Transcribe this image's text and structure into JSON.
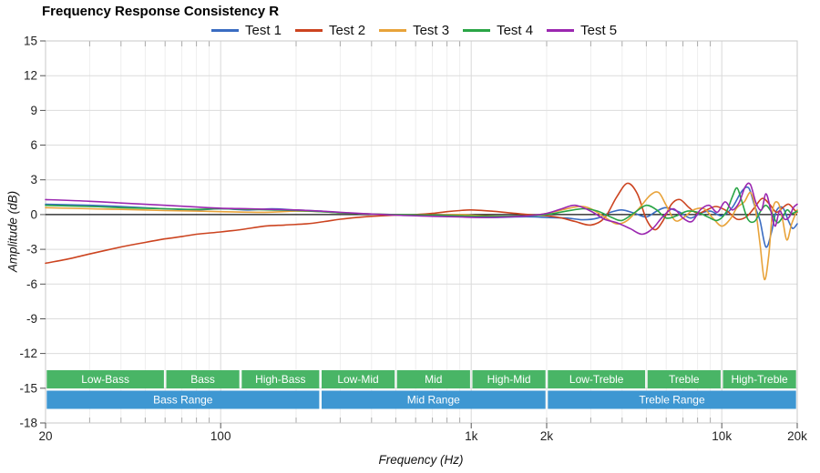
{
  "chart_data": {
    "type": "line",
    "title": "Frequency Response Consistency R",
    "xlabel": "Frequency (Hz)",
    "ylabel": "Amplitude (dB)",
    "x_scale": "log",
    "xlim": [
      20,
      20000
    ],
    "ylim": [
      -18,
      15
    ],
    "grid": true,
    "legend_position": "top",
    "y_ticks": [
      15,
      12,
      9,
      6,
      3,
      0,
      -3,
      -6,
      -9,
      -12,
      -15,
      -18
    ],
    "x_ticks": [
      {
        "v": 20,
        "label": "20"
      },
      {
        "v": 100,
        "label": "100"
      },
      {
        "v": 1000,
        "label": "1k"
      },
      {
        "v": 2000,
        "label": "2k"
      },
      {
        "v": 10000,
        "label": "10k"
      },
      {
        "v": 20000,
        "label": "20k"
      }
    ],
    "zero_line_color": "#111111",
    "series": [
      {
        "name": "Test 1",
        "color": "#3a6cc2",
        "points": [
          [
            20,
            0.9
          ],
          [
            30,
            0.8
          ],
          [
            40,
            0.7
          ],
          [
            60,
            0.5
          ],
          [
            80,
            0.4
          ],
          [
            100,
            0.5
          ],
          [
            130,
            0.4
          ],
          [
            160,
            0.5
          ],
          [
            200,
            0.4
          ],
          [
            250,
            0.3
          ],
          [
            300,
            0.15
          ],
          [
            400,
            0.05
          ],
          [
            500,
            0
          ],
          [
            600,
            -0.05
          ],
          [
            700,
            -0.1
          ],
          [
            800,
            -0.15
          ],
          [
            1000,
            -0.2
          ],
          [
            1200,
            -0.25
          ],
          [
            1500,
            -0.2
          ],
          [
            1800,
            -0.2
          ],
          [
            2000,
            -0.25
          ],
          [
            2400,
            -0.3
          ],
          [
            2800,
            -0.45
          ],
          [
            3200,
            -0.3
          ],
          [
            3600,
            0.2
          ],
          [
            4000,
            0.4
          ],
          [
            4500,
            0.1
          ],
          [
            5000,
            -0.2
          ],
          [
            5500,
            0.3
          ],
          [
            6000,
            0.6
          ],
          [
            6800,
            0.2
          ],
          [
            7500,
            -0.3
          ],
          [
            8200,
            0.1
          ],
          [
            9000,
            0.3
          ],
          [
            10000,
            -0.1
          ],
          [
            11000,
            0.6
          ],
          [
            12000,
            2.0
          ],
          [
            12800,
            2.3
          ],
          [
            13500,
            0.8
          ],
          [
            14200,
            -0.5
          ],
          [
            15000,
            -2.8
          ],
          [
            15800,
            -1.5
          ],
          [
            16500,
            0.3
          ],
          [
            17500,
            0.6
          ],
          [
            18500,
            -0.6
          ],
          [
            19200,
            -1.2
          ],
          [
            20000,
            -0.8
          ]
        ]
      },
      {
        "name": "Test 2",
        "color": "#cc4420",
        "points": [
          [
            20,
            -4.2
          ],
          [
            25,
            -3.8
          ],
          [
            30,
            -3.4
          ],
          [
            40,
            -2.8
          ],
          [
            50,
            -2.4
          ],
          [
            60,
            -2.1
          ],
          [
            70,
            -1.9
          ],
          [
            80,
            -1.7
          ],
          [
            100,
            -1.5
          ],
          [
            120,
            -1.3
          ],
          [
            150,
            -1.0
          ],
          [
            180,
            -0.9
          ],
          [
            220,
            -0.8
          ],
          [
            260,
            -0.6
          ],
          [
            300,
            -0.4
          ],
          [
            350,
            -0.25
          ],
          [
            400,
            -0.15
          ],
          [
            500,
            -0.05
          ],
          [
            600,
            0
          ],
          [
            700,
            0.1
          ],
          [
            800,
            0.25
          ],
          [
            900,
            0.35
          ],
          [
            1000,
            0.4
          ],
          [
            1200,
            0.3
          ],
          [
            1500,
            0.1
          ],
          [
            1800,
            -0.05
          ],
          [
            2000,
            -0.1
          ],
          [
            2300,
            -0.3
          ],
          [
            2600,
            -0.6
          ],
          [
            3000,
            -0.9
          ],
          [
            3400,
            -0.3
          ],
          [
            3800,
            1.5
          ],
          [
            4200,
            2.7
          ],
          [
            4600,
            1.8
          ],
          [
            5000,
            -0.4
          ],
          [
            5400,
            -1.3
          ],
          [
            5800,
            -0.6
          ],
          [
            6300,
            0.9
          ],
          [
            6800,
            1.3
          ],
          [
            7400,
            0.6
          ],
          [
            8000,
            0.1
          ],
          [
            8700,
            0.4
          ],
          [
            9500,
            0.7
          ],
          [
            10500,
            0.3
          ],
          [
            11500,
            -0.4
          ],
          [
            12500,
            -0.2
          ],
          [
            13500,
            0.6
          ],
          [
            14500,
            1.4
          ],
          [
            15500,
            0.9
          ],
          [
            16500,
            0.2
          ],
          [
            17500,
            0.6
          ],
          [
            18500,
            0.9
          ],
          [
            19500,
            0.4
          ],
          [
            20000,
            0.2
          ]
        ]
      },
      {
        "name": "Test 3",
        "color": "#e8a33a",
        "points": [
          [
            20,
            0.6
          ],
          [
            30,
            0.5
          ],
          [
            40,
            0.45
          ],
          [
            60,
            0.35
          ],
          [
            80,
            0.3
          ],
          [
            100,
            0.25
          ],
          [
            150,
            0.2
          ],
          [
            200,
            0.3
          ],
          [
            250,
            0.25
          ],
          [
            300,
            0.15
          ],
          [
            400,
            0.05
          ],
          [
            500,
            0
          ],
          [
            700,
            -0.05
          ],
          [
            900,
            0
          ],
          [
            1100,
            -0.1
          ],
          [
            1400,
            -0.15
          ],
          [
            1700,
            -0.1
          ],
          [
            2000,
            0.1
          ],
          [
            2300,
            0.4
          ],
          [
            2700,
            0.7
          ],
          [
            3000,
            0.5
          ],
          [
            3400,
            -0.2
          ],
          [
            3800,
            -0.8
          ],
          [
            4200,
            -0.5
          ],
          [
            4700,
            0.6
          ],
          [
            5200,
            1.7
          ],
          [
            5600,
            1.9
          ],
          [
            6000,
            0.8
          ],
          [
            6500,
            -0.5
          ],
          [
            7000,
            -0.3
          ],
          [
            7700,
            0.4
          ],
          [
            8500,
            0.5
          ],
          [
            9200,
            -0.3
          ],
          [
            10000,
            -1.0
          ],
          [
            10800,
            -0.4
          ],
          [
            11500,
            0.6
          ],
          [
            12300,
            1.1
          ],
          [
            13000,
            1.9
          ],
          [
            13600,
            0.6
          ],
          [
            14200,
            -2.5
          ],
          [
            14800,
            -5.6
          ],
          [
            15400,
            -3.5
          ],
          [
            16000,
            0.5
          ],
          [
            16800,
            1.0
          ],
          [
            17500,
            -0.5
          ],
          [
            18200,
            -2.2
          ],
          [
            19000,
            -0.8
          ],
          [
            20000,
            0.4
          ]
        ]
      },
      {
        "name": "Test 4",
        "color": "#2aa546",
        "points": [
          [
            20,
            0.8
          ],
          [
            30,
            0.7
          ],
          [
            40,
            0.6
          ],
          [
            60,
            0.5
          ],
          [
            80,
            0.45
          ],
          [
            100,
            0.5
          ],
          [
            130,
            0.45
          ],
          [
            160,
            0.4
          ],
          [
            200,
            0.35
          ],
          [
            250,
            0.25
          ],
          [
            300,
            0.15
          ],
          [
            400,
            0.05
          ],
          [
            500,
            0
          ],
          [
            700,
            -0.05
          ],
          [
            900,
            -0.1
          ],
          [
            1100,
            -0.15
          ],
          [
            1400,
            -0.15
          ],
          [
            1700,
            -0.1
          ],
          [
            2000,
            0
          ],
          [
            2400,
            0.3
          ],
          [
            2800,
            0.5
          ],
          [
            3200,
            0.3
          ],
          [
            3600,
            -0.2
          ],
          [
            4000,
            -0.5
          ],
          [
            4500,
            0.2
          ],
          [
            5000,
            0.8
          ],
          [
            5500,
            0.4
          ],
          [
            6000,
            -0.3
          ],
          [
            6600,
            -0.1
          ],
          [
            7300,
            0.3
          ],
          [
            8000,
            0.2
          ],
          [
            8800,
            -0.2
          ],
          [
            9600,
            -0.5
          ],
          [
            10400,
            0.2
          ],
          [
            11000,
            1.5
          ],
          [
            11500,
            2.3
          ],
          [
            12000,
            1.2
          ],
          [
            12700,
            -0.4
          ],
          [
            13500,
            -0.6
          ],
          [
            14300,
            0.3
          ],
          [
            15000,
            0.8
          ],
          [
            15800,
            0.2
          ],
          [
            16600,
            -0.7
          ],
          [
            17400,
            -0.3
          ],
          [
            18200,
            0.4
          ],
          [
            19000,
            0.1
          ],
          [
            20000,
            0.3
          ]
        ]
      },
      {
        "name": "Test 5",
        "color": "#9b27b0",
        "points": [
          [
            20,
            1.3
          ],
          [
            30,
            1.15
          ],
          [
            40,
            1.0
          ],
          [
            60,
            0.8
          ],
          [
            80,
            0.65
          ],
          [
            100,
            0.55
          ],
          [
            130,
            0.5
          ],
          [
            160,
            0.45
          ],
          [
            200,
            0.4
          ],
          [
            250,
            0.3
          ],
          [
            300,
            0.2
          ],
          [
            400,
            0.05
          ],
          [
            500,
            -0.05
          ],
          [
            700,
            -0.15
          ],
          [
            900,
            -0.2
          ],
          [
            1100,
            -0.25
          ],
          [
            1400,
            -0.2
          ],
          [
            1700,
            -0.1
          ],
          [
            2000,
            0.1
          ],
          [
            2300,
            0.5
          ],
          [
            2600,
            0.8
          ],
          [
            3000,
            0.3
          ],
          [
            3400,
            -0.4
          ],
          [
            3800,
            -0.7
          ],
          [
            4300,
            -1.2
          ],
          [
            4800,
            -1.7
          ],
          [
            5300,
            -1.2
          ],
          [
            5800,
            -0.2
          ],
          [
            6400,
            0.5
          ],
          [
            7000,
            -0.3
          ],
          [
            7600,
            -0.6
          ],
          [
            8200,
            0.4
          ],
          [
            8900,
            0.8
          ],
          [
            9600,
            0.2
          ],
          [
            10300,
            1.1
          ],
          [
            11000,
            0.4
          ],
          [
            11700,
            1.0
          ],
          [
            12400,
            2.4
          ],
          [
            13000,
            2.6
          ],
          [
            13700,
            1.0
          ],
          [
            14400,
            0.4
          ],
          [
            15000,
            1.8
          ],
          [
            15600,
            0.6
          ],
          [
            16300,
            -1.0
          ],
          [
            17000,
            0.3
          ],
          [
            17800,
            -0.4
          ],
          [
            18600,
            -0.2
          ],
          [
            19300,
            0.6
          ],
          [
            20000,
            0.9
          ]
        ]
      }
    ],
    "ranges": {
      "sub_color": "#49b566",
      "main_color": "#3e97d2",
      "text_color": "#ffffff",
      "sub": [
        {
          "label": "Low-Bass",
          "from": 20,
          "to": 60
        },
        {
          "label": "Bass",
          "from": 60,
          "to": 120
        },
        {
          "label": "High-Bass",
          "from": 120,
          "to": 250
        },
        {
          "label": "Low-Mid",
          "from": 250,
          "to": 500
        },
        {
          "label": "Mid",
          "from": 500,
          "to": 1000
        },
        {
          "label": "High-Mid",
          "from": 1000,
          "to": 2000
        },
        {
          "label": "Low-Treble",
          "from": 2000,
          "to": 5000
        },
        {
          "label": "Treble",
          "from": 5000,
          "to": 10000
        },
        {
          "label": "High-Treble",
          "from": 10000,
          "to": 20000
        }
      ],
      "main": [
        {
          "label": "Bass Range",
          "from": 20,
          "to": 250
        },
        {
          "label": "Mid Range",
          "from": 250,
          "to": 2000
        },
        {
          "label": "Treble Range",
          "from": 2000,
          "to": 20000
        }
      ]
    }
  }
}
